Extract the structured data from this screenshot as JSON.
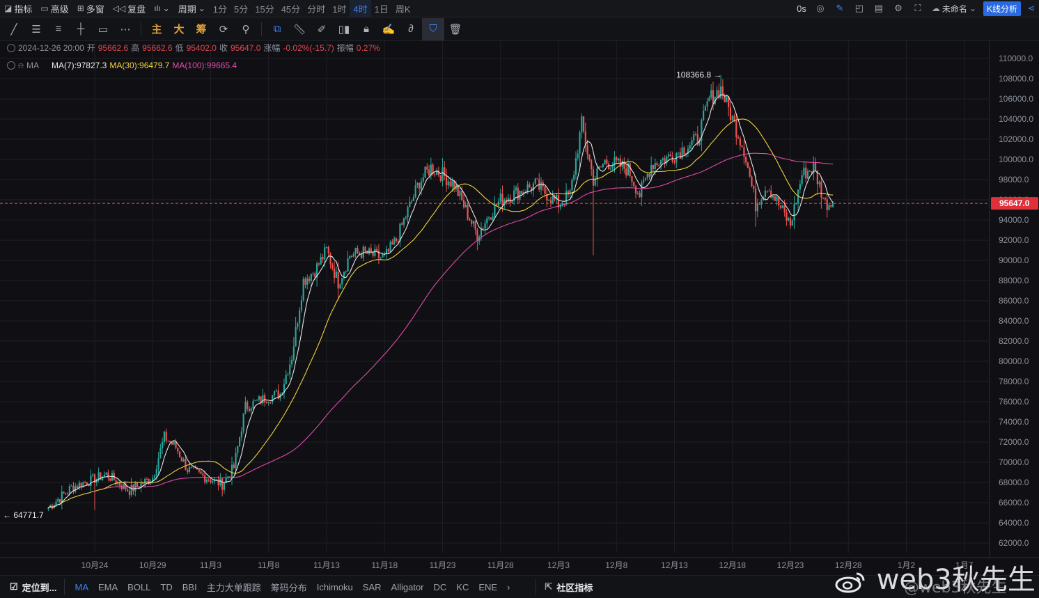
{
  "toolbar": {
    "indicators_label": "指标",
    "advanced_label": "高级",
    "multiwin_label": "多窗",
    "replay_label": "复盘",
    "period_label": "周期",
    "periods": [
      "1分",
      "5分",
      "15分",
      "45分",
      "分时",
      "1时",
      "4时",
      "1日",
      "周K"
    ],
    "active_period": "4时",
    "countdown": "0s",
    "layout_name": "未命名",
    "kline_button": "K线分析"
  },
  "drawing_tools": {
    "main_label": "主",
    "big_label": "大",
    "chip_label": "筹"
  },
  "legend": {
    "datetime": "2024-12-26 20:00",
    "open_label": "开",
    "open": "95662.6",
    "high_label": "高",
    "high": "95662.6",
    "low_label": "低",
    "low": "95402.0",
    "close_label": "收",
    "close": "95647.0",
    "change_label": "涨幅",
    "change": "-0.02%(-15.7)",
    "amp_label": "振幅",
    "amp": "0.27%",
    "ma_name": "MA",
    "ma7": "MA(7):97827.3",
    "ma30": "MA(30):96479.7",
    "ma100": "MA(100):99665.4"
  },
  "annotations": {
    "high_marker": "108366.8",
    "low_marker": "64771.7",
    "last_price": "95647.0"
  },
  "colors": {
    "up": "#26a69a",
    "down": "#ef5350",
    "ma7": "#e6e6e6",
    "ma30": "#f0d23a",
    "ma100": "#e14aa8",
    "active": "#3b82f6"
  },
  "bottom": {
    "locate_label": "定位到...",
    "indicators": [
      "MA",
      "EMA",
      "BOLL",
      "TD",
      "BBI",
      "主力大单跟踪",
      "筹码分布",
      "Ichimoku",
      "SAR",
      "Alligator",
      "DC",
      "KC",
      "ENE"
    ],
    "active_indicator": "MA",
    "community_label": "社区指标"
  },
  "watermark": {
    "text": "web3秋先生",
    "handle": "@web3秋先生"
  },
  "chart_data": {
    "type": "candlestick",
    "interval": "4h",
    "x_ticks": [
      "10月24",
      "10月29",
      "11月3",
      "11月8",
      "11月13",
      "11月18",
      "11月23",
      "11月28",
      "12月3",
      "12月8",
      "12月13",
      "12月18",
      "12月23",
      "12月28",
      "1月2",
      "1月7"
    ],
    "y_ticks": [
      62000,
      64000,
      66000,
      68000,
      70000,
      72000,
      74000,
      76000,
      78000,
      80000,
      82000,
      84000,
      86000,
      88000,
      90000,
      92000,
      94000,
      96000,
      98000,
      100000,
      102000,
      104000,
      106000,
      108000,
      110000
    ],
    "ylim": [
      61000,
      110500
    ],
    "price_anchors": [
      {
        "date": "10月20",
        "price": 65500
      },
      {
        "date": "10月22",
        "price": 67500
      },
      {
        "date": "10月25",
        "price": 68800
      },
      {
        "date": "10月27",
        "price": 67200
      },
      {
        "date": "10月29",
        "price": 68500
      },
      {
        "date": "10月30",
        "price": 72500
      },
      {
        "date": "10月31",
        "price": 71500
      },
      {
        "date": "11月1",
        "price": 69300
      },
      {
        "date": "11月3",
        "price": 68300
      },
      {
        "date": "11月4",
        "price": 67800
      },
      {
        "date": "11月5",
        "price": 69500
      },
      {
        "date": "11月6",
        "price": 75500
      },
      {
        "date": "11月8",
        "price": 76500
      },
      {
        "date": "11月9",
        "price": 76800
      },
      {
        "date": "11月10",
        "price": 80500
      },
      {
        "date": "11月11",
        "price": 88000
      },
      {
        "date": "11月12",
        "price": 89000
      },
      {
        "date": "11月13",
        "price": 91000
      },
      {
        "date": "11月14",
        "price": 87800
      },
      {
        "date": "11月15",
        "price": 90500
      },
      {
        "date": "11月16",
        "price": 90800
      },
      {
        "date": "11月18",
        "price": 90200
      },
      {
        "date": "11月19",
        "price": 92000
      },
      {
        "date": "11月21",
        "price": 97800
      },
      {
        "date": "11月22",
        "price": 99200
      },
      {
        "date": "11月23",
        "price": 98500
      },
      {
        "date": "11月24",
        "price": 97500
      },
      {
        "date": "11月25",
        "price": 95000
      },
      {
        "date": "11月26",
        "price": 92500
      },
      {
        "date": "11月27",
        "price": 94500
      },
      {
        "date": "11月28",
        "price": 96000
      },
      {
        "date": "11月30",
        "price": 97000
      },
      {
        "date": "12月1",
        "price": 97500
      },
      {
        "date": "12月3",
        "price": 95600
      },
      {
        "date": "12月4",
        "price": 96500
      },
      {
        "date": "12月5",
        "price": 103500
      },
      {
        "date": "12月6",
        "price": 98000
      },
      {
        "date": "12月7",
        "price": 99800
      },
      {
        "date": "12月8",
        "price": 99500
      },
      {
        "date": "12月9",
        "price": 99000
      },
      {
        "date": "12月10",
        "price": 96500
      },
      {
        "date": "12月11",
        "price": 99500
      },
      {
        "date": "12月13",
        "price": 100500
      },
      {
        "date": "12月15",
        "price": 102000
      },
      {
        "date": "12月16",
        "price": 106000
      },
      {
        "date": "12月17",
        "price": 107000
      },
      {
        "date": "12月18",
        "price": 104000
      },
      {
        "date": "12月19",
        "price": 101000
      },
      {
        "date": "12月20",
        "price": 95500
      },
      {
        "date": "12月21",
        "price": 97500
      },
      {
        "date": "12月22",
        "price": 95500
      },
      {
        "date": "12月23",
        "price": 93500
      },
      {
        "date": "12月24",
        "price": 98500
      },
      {
        "date": "12月25",
        "price": 99200
      },
      {
        "date": "12月26",
        "price": 95647
      }
    ],
    "ma_series": [
      {
        "name": "MA(7)",
        "last": 97827.3
      },
      {
        "name": "MA(30)",
        "last": 96479.7
      },
      {
        "name": "MA(100)",
        "last": 99665.4
      }
    ],
    "high": 108366.8,
    "low": 64771.7,
    "last": 95647.0,
    "grid": true,
    "price_axis": "right"
  }
}
